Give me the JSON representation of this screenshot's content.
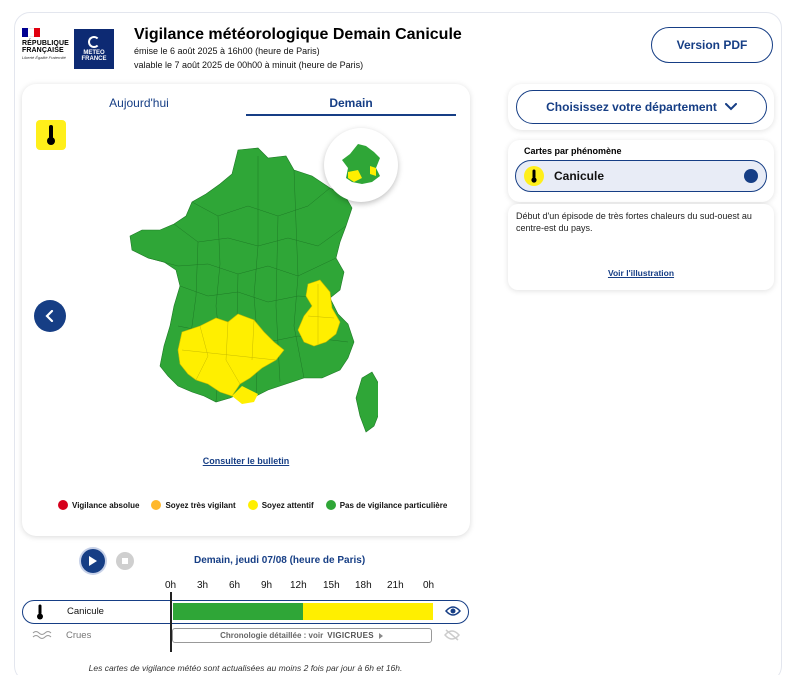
{
  "header": {
    "republic_name_line1": "RÉPUBLIQUE",
    "republic_name_line2": "FRANÇAISE",
    "republic_motto": "Liberté Égalité Fraternité",
    "meteo_logo_line1": "METEO",
    "meteo_logo_line2": "FRANCE",
    "title": "Vigilance météorologique Demain Canicule",
    "issued": "émise le 6 août 2025 à 16h00 (heure de Paris)",
    "valid": "valable le 7 août 2025 de 00h00 à minuit (heure de Paris)",
    "pdf_label": "Version PDF"
  },
  "map": {
    "tab_today": "Aujourd'hui",
    "tab_tomorrow": "Demain",
    "bulletin_link": "Consulter le bulletin",
    "legend": [
      {
        "label": "Vigilance absolue",
        "color": "#d6001c"
      },
      {
        "label": "Soyez très vigilant",
        "color": "#ffb82b"
      },
      {
        "label": "Soyez attentif",
        "color": "#ffef00"
      },
      {
        "label": "Pas de vigilance particulière",
        "color": "#2fa637"
      }
    ]
  },
  "sidebar": {
    "department_label": "Choisissez votre département",
    "phenomena_heading": "Cartes par phénomène",
    "phenomenon": "Canicule",
    "description": "Début d'un épisode de très fortes chaleurs du sud-ouest au centre-est du pays.",
    "illustration_link": "Voir l'illustration"
  },
  "timeline": {
    "date_label": "Demain, jeudi 07/08 (heure de Paris)",
    "hours": [
      "0h",
      "3h",
      "6h",
      "9h",
      "12h",
      "15h",
      "18h",
      "21h",
      "0h"
    ],
    "rows": [
      {
        "label": "Canicule",
        "segments": [
          {
            "from": "0h",
            "to": "12h",
            "level": "green"
          },
          {
            "from": "12h",
            "to": "24h",
            "level": "yellow"
          }
        ]
      },
      {
        "label": "Crues",
        "detail_prefix": "Chronologie détaillée : voir",
        "detail_brand": "VIGICRUES"
      }
    ],
    "footer": "Les cartes de vigilance météo sont actualisées au moins 2 fois par jour à 6h et 16h."
  },
  "colors": {
    "accent": "#163e85",
    "green": "#2fa637",
    "yellow": "#ffef00"
  }
}
